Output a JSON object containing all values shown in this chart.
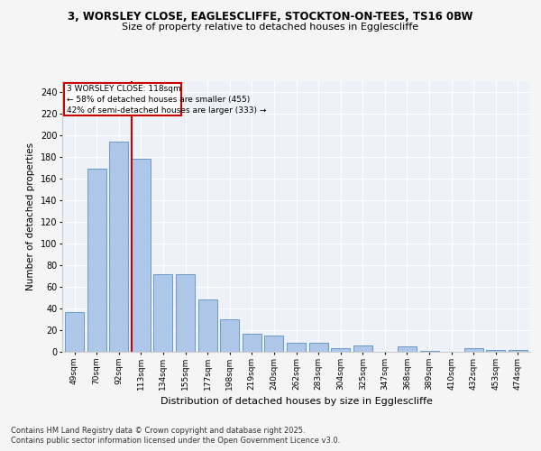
{
  "title1": "3, WORSLEY CLOSE, EAGLESCLIFFE, STOCKTON-ON-TEES, TS16 0BW",
  "title2": "Size of property relative to detached houses in Egglescliffe",
  "xlabel": "Distribution of detached houses by size in Egglescliffe",
  "ylabel": "Number of detached properties",
  "categories": [
    "49sqm",
    "70sqm",
    "92sqm",
    "113sqm",
    "134sqm",
    "155sqm",
    "177sqm",
    "198sqm",
    "219sqm",
    "240sqm",
    "262sqm",
    "283sqm",
    "304sqm",
    "325sqm",
    "347sqm",
    "368sqm",
    "389sqm",
    "410sqm",
    "432sqm",
    "453sqm",
    "474sqm"
  ],
  "values": [
    37,
    169,
    194,
    178,
    72,
    72,
    48,
    30,
    17,
    15,
    8,
    8,
    3,
    6,
    0,
    5,
    1,
    0,
    3,
    2,
    2
  ],
  "bar_color": "#aec6e8",
  "bar_edge_color": "#5a8fc0",
  "property_line_x": 3,
  "property_line_label": "3 WORSLEY CLOSE: 118sqm",
  "annotation_line1": "← 58% of detached houses are smaller (455)",
  "annotation_line2": "42% of semi-detached houses are larger (333) →",
  "red_line_color": "#cc0000",
  "box_edge_color": "#cc0000",
  "footnote1": "Contains HM Land Registry data © Crown copyright and database right 2025.",
  "footnote2": "Contains public sector information licensed under the Open Government Licence v3.0.",
  "ylim": [
    0,
    250
  ],
  "yticks": [
    0,
    20,
    40,
    60,
    80,
    100,
    120,
    140,
    160,
    180,
    200,
    220,
    240
  ],
  "bg_color": "#eef2f8",
  "grid_color": "#ffffff",
  "fig_bg": "#f5f5f5"
}
